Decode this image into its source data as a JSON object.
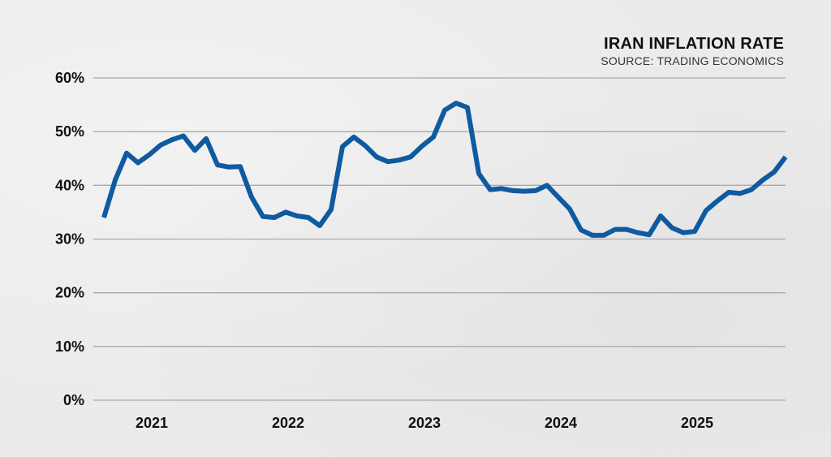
{
  "chart_data": {
    "type": "line",
    "title": "IRAN INFLATION RATE",
    "subtitle": "SOURCE: TRADING ECONOMICS",
    "xlabel": "",
    "ylabel": "",
    "ylim": [
      0,
      60
    ],
    "y_ticks": [
      {
        "value": 0,
        "label": "0%"
      },
      {
        "value": 10,
        "label": "10%"
      },
      {
        "value": 20,
        "label": "20%"
      },
      {
        "value": 30,
        "label": "30%"
      },
      {
        "value": 40,
        "label": "40%"
      },
      {
        "value": 50,
        "label": "50%"
      },
      {
        "value": 60,
        "label": "60%"
      }
    ],
    "x_ticks": [
      {
        "value": "2021-01",
        "label": "2021"
      },
      {
        "value": "2022-01",
        "label": "2022"
      },
      {
        "value": "2023-01",
        "label": "2023"
      },
      {
        "value": "2024-01",
        "label": "2024"
      },
      {
        "value": "2025-01",
        "label": "2025"
      }
    ],
    "xlim": [
      "2020-09",
      "2025-09"
    ],
    "grid": "horizontal",
    "line_color": "#0f5aa0",
    "series": [
      {
        "x": [
          "2020-09",
          "2020-10",
          "2020-11",
          "2020-12",
          "2021-01",
          "2021-02",
          "2021-03",
          "2021-04",
          "2021-05",
          "2021-06",
          "2021-07",
          "2021-08",
          "2021-09",
          "2021-10",
          "2021-11",
          "2021-12",
          "2022-01",
          "2022-02",
          "2022-03",
          "2022-04",
          "2022-05",
          "2022-06",
          "2022-07",
          "2022-08",
          "2022-09",
          "2022-10",
          "2022-11",
          "2022-12",
          "2023-01",
          "2023-02",
          "2023-03",
          "2023-04",
          "2023-05",
          "2023-06",
          "2023-07",
          "2023-08",
          "2023-09",
          "2023-10",
          "2023-11",
          "2023-12",
          "2024-01",
          "2024-02",
          "2024-03",
          "2024-04",
          "2024-05",
          "2024-06",
          "2024-07",
          "2024-08",
          "2024-09",
          "2024-10",
          "2024-11",
          "2024-12",
          "2025-01",
          "2025-02",
          "2025-03",
          "2025-04",
          "2025-05",
          "2025-06",
          "2025-07",
          "2025-08",
          "2025-09"
        ],
        "y": [
          34.0,
          41.0,
          46.0,
          44.2,
          45.7,
          47.5,
          48.5,
          49.2,
          46.5,
          48.7,
          43.8,
          43.4,
          43.5,
          37.8,
          34.2,
          34.0,
          35.0,
          34.3,
          34.0,
          32.5,
          35.5,
          47.2,
          49.0,
          47.4,
          45.3,
          44.4,
          44.7,
          45.3,
          47.3,
          49.0,
          54.0,
          55.3,
          54.5,
          42.2,
          39.2,
          39.4,
          39.0,
          38.9,
          39.0,
          40.0,
          37.8,
          35.6,
          31.7,
          30.7,
          30.7,
          31.8,
          31.8,
          31.2,
          30.8,
          34.3,
          32.1,
          31.2,
          31.4,
          35.3,
          37.1,
          38.7,
          38.5,
          39.2,
          41.0,
          42.5,
          45.3
        ]
      }
    ]
  }
}
